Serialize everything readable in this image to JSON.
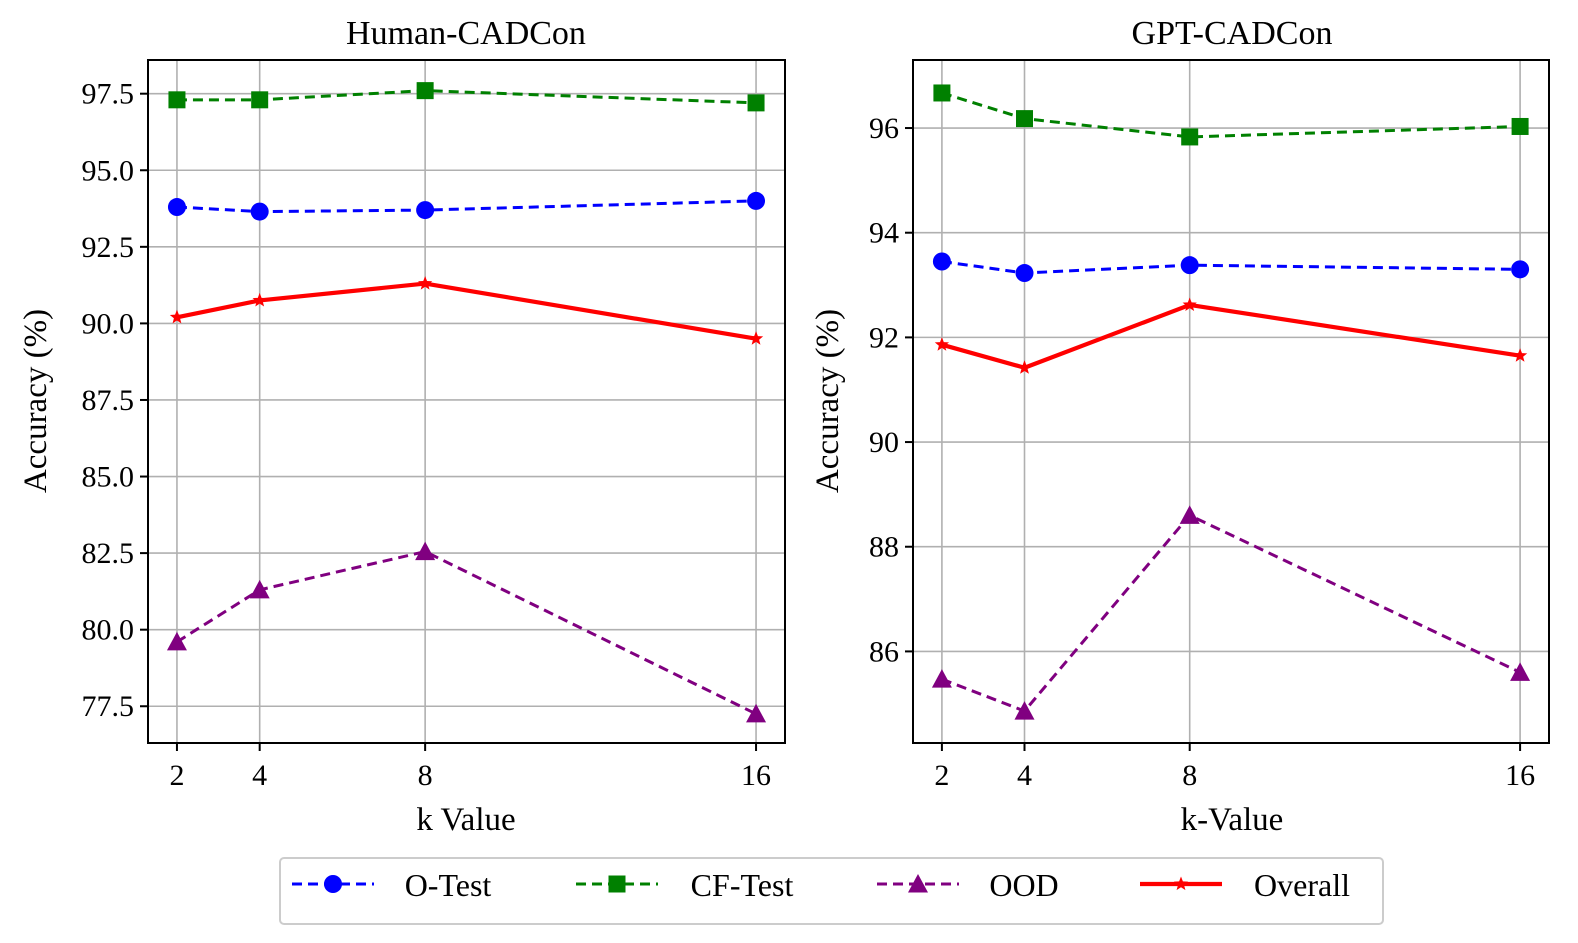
{
  "chart_data": [
    {
      "type": "line",
      "title": "Human-CADCon",
      "xlabel": "k Value",
      "ylabel": "Accuracy (%)",
      "x": [
        2,
        4,
        8,
        16
      ],
      "x_ticks": [
        "2",
        "4",
        "8",
        "16"
      ],
      "xlim": [
        1.3,
        16.7
      ],
      "ylim": [
        76.3,
        98.6
      ],
      "y_ticks": [
        77.5,
        80.0,
        82.5,
        85.0,
        87.5,
        90.0,
        92.5,
        95.0,
        97.5
      ],
      "y_tick_labels": [
        "77.5",
        "80.0",
        "82.5",
        "85.0",
        "87.5",
        "90.0",
        "92.5",
        "95.0",
        "97.5"
      ],
      "grid": true,
      "series": [
        {
          "name": "O-Test",
          "values": [
            93.8,
            93.65,
            93.7,
            94.0
          ],
          "color": "#0000ff",
          "marker": "circle",
          "style": "dashed"
        },
        {
          "name": "CF-Test",
          "values": [
            97.3,
            97.3,
            97.6,
            97.2
          ],
          "color": "#008000",
          "marker": "square",
          "style": "dashed"
        },
        {
          "name": "OOD",
          "values": [
            79.6,
            81.3,
            82.55,
            77.25
          ],
          "color": "#800080",
          "marker": "triangle",
          "style": "dashed"
        },
        {
          "name": "Overall",
          "values": [
            90.2,
            90.75,
            91.3,
            89.5
          ],
          "color": "#ff0000",
          "marker": "star",
          "style": "solid"
        }
      ]
    },
    {
      "type": "line",
      "title": "GPT-CADCon",
      "xlabel": "k-Value",
      "ylabel": "Accuracy (%)",
      "x": [
        2,
        4,
        8,
        16
      ],
      "x_ticks": [
        "2",
        "4",
        "8",
        "16"
      ],
      "xlim": [
        1.3,
        16.7
      ],
      "ylim": [
        84.25,
        97.3
      ],
      "y_ticks": [
        86,
        88,
        90,
        92,
        94,
        96
      ],
      "y_tick_labels": [
        "86",
        "88",
        "90",
        "92",
        "94",
        "96"
      ],
      "grid": true,
      "series": [
        {
          "name": "O-Test",
          "values": [
            93.45,
            93.23,
            93.38,
            93.3
          ],
          "color": "#0000ff",
          "marker": "circle",
          "style": "dashed"
        },
        {
          "name": "CF-Test",
          "values": [
            96.67,
            96.18,
            95.83,
            96.03
          ],
          "color": "#008000",
          "marker": "square",
          "style": "dashed"
        },
        {
          "name": "OOD",
          "values": [
            85.47,
            84.86,
            88.6,
            85.6
          ],
          "color": "#800080",
          "marker": "triangle",
          "style": "dashed"
        },
        {
          "name": "Overall",
          "values": [
            91.86,
            91.42,
            92.62,
            91.65
          ],
          "color": "#ff0000",
          "marker": "star",
          "style": "solid"
        }
      ]
    }
  ],
  "legend": {
    "position": "bottom-center",
    "items": [
      {
        "label": "O-Test",
        "color": "#0000ff",
        "marker": "circle",
        "style": "dashed"
      },
      {
        "label": "CF-Test",
        "color": "#008000",
        "marker": "square",
        "style": "dashed"
      },
      {
        "label": "OOD",
        "color": "#800080",
        "marker": "triangle",
        "style": "dashed"
      },
      {
        "label": "Overall",
        "color": "#ff0000",
        "marker": "star",
        "style": "solid"
      }
    ]
  }
}
